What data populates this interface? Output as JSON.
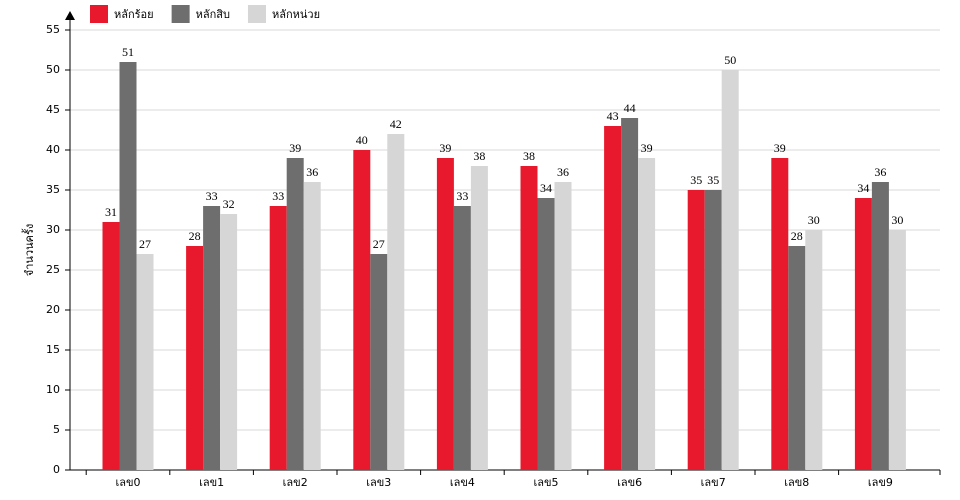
{
  "chart_data": {
    "type": "bar",
    "y_label": "จำนวนครั้ง",
    "categories": [
      "เลข0",
      "เลข1",
      "เลข2",
      "เลข3",
      "เลข4",
      "เลข5",
      "เลข6",
      "เลข7",
      "เลข8",
      "เลข9"
    ],
    "series": [
      {
        "name": "หลักร้อย",
        "color": "#e8192c",
        "values": [
          31,
          28,
          33,
          40,
          39,
          38,
          43,
          35,
          39,
          34
        ]
      },
      {
        "name": "หลักสิบ",
        "color": "#6e6e6e",
        "values": [
          51,
          33,
          39,
          27,
          33,
          34,
          44,
          35,
          28,
          36
        ]
      },
      {
        "name": "หลักหน่วย",
        "color": "#d6d6d6",
        "values": [
          27,
          32,
          36,
          42,
          38,
          36,
          39,
          50,
          30,
          30
        ]
      }
    ],
    "ylim": [
      0,
      55
    ],
    "yticks": [
      0,
      5,
      10,
      15,
      20,
      25,
      30,
      35,
      40,
      45,
      50,
      55
    ],
    "grid": true
  }
}
